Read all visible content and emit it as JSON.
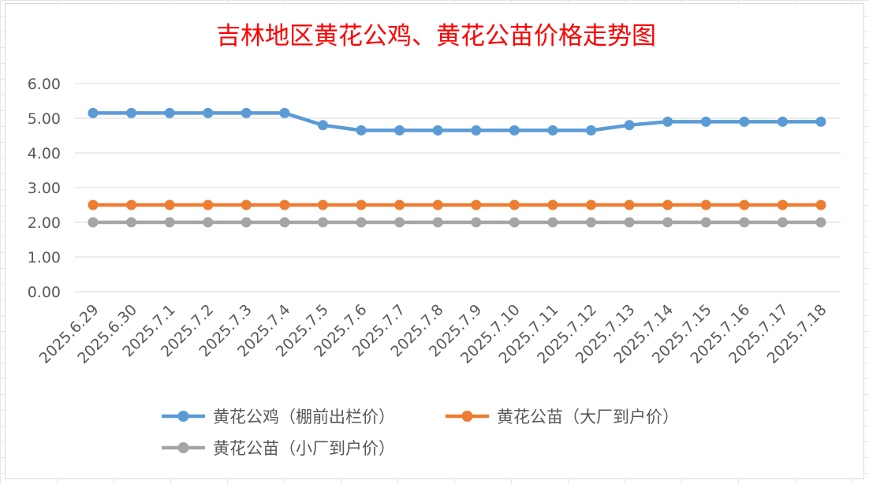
{
  "chart_data": {
    "type": "line",
    "title": "吉林地区黄花公鸡、黄花公苗价格走势图",
    "xlabel": "",
    "ylabel": "",
    "ylim": [
      0,
      6
    ],
    "y_ticks": [
      "0.00",
      "1.00",
      "2.00",
      "3.00",
      "4.00",
      "5.00",
      "6.00"
    ],
    "grid": true,
    "legend_position": "bottom",
    "categories": [
      "2025.6.29",
      "2025.6.30",
      "2025.7.1",
      "2025.7.2",
      "2025.7.3",
      "2025.7.4",
      "2025.7.5",
      "2025.7.6",
      "2025.7.7",
      "2025.7.8",
      "2025.7.9",
      "2025.7.10",
      "2025.7.11",
      "2025.7.12",
      "2025.7.13",
      "2025.7.14",
      "2025.7.15",
      "2025.7.16",
      "2025.7.17",
      "2025.7.18"
    ],
    "series": [
      {
        "name": "黄花公鸡（棚前出栏价）",
        "color": "#5b9bd5",
        "values": [
          5.15,
          5.15,
          5.15,
          5.15,
          5.15,
          5.15,
          4.8,
          4.65,
          4.65,
          4.65,
          4.65,
          4.65,
          4.65,
          4.65,
          4.8,
          4.9,
          4.9,
          4.9,
          4.9,
          4.9
        ]
      },
      {
        "name": "黄花公苗（大厂到户价）",
        "color": "#ed7d31",
        "values": [
          2.5,
          2.5,
          2.5,
          2.5,
          2.5,
          2.5,
          2.5,
          2.5,
          2.5,
          2.5,
          2.5,
          2.5,
          2.5,
          2.5,
          2.5,
          2.5,
          2.5,
          2.5,
          2.5,
          2.5
        ]
      },
      {
        "name": "黄花公苗（小厂到户价）",
        "color": "#a5a5a5",
        "values": [
          2.0,
          2.0,
          2.0,
          2.0,
          2.0,
          2.0,
          2.0,
          2.0,
          2.0,
          2.0,
          2.0,
          2.0,
          2.0,
          2.0,
          2.0,
          2.0,
          2.0,
          2.0,
          2.0,
          2.0
        ]
      }
    ]
  }
}
